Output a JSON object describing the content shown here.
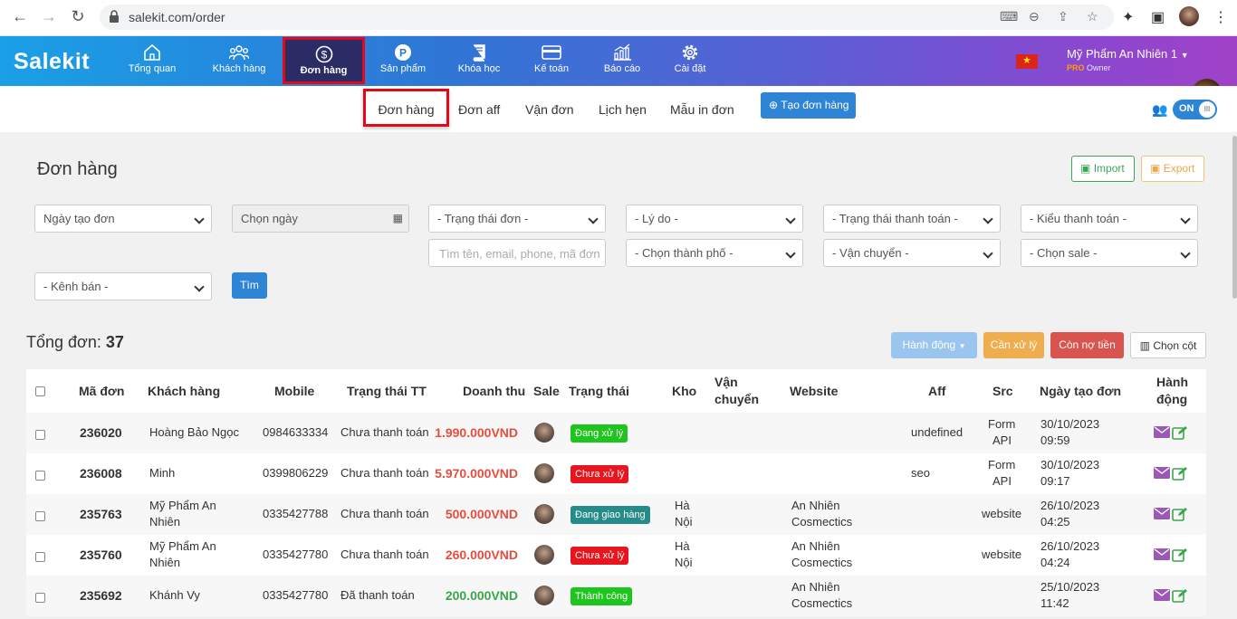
{
  "browser": {
    "url": "salekit.com/order"
  },
  "header": {
    "logo": "Salekit",
    "menu": [
      {
        "label": "Tổng quan",
        "icon": "home-icon"
      },
      {
        "label": "Khách hàng",
        "icon": "users-icon"
      },
      {
        "label": "Đơn hàng",
        "icon": "dollar-circle-icon"
      },
      {
        "label": "Sản phẩm",
        "icon": "p-circle-icon"
      },
      {
        "label": "Khóa học",
        "icon": "book-icon"
      },
      {
        "label": "Kế toán",
        "icon": "credit-card-icon"
      },
      {
        "label": "Báo cáo",
        "icon": "chart-icon"
      },
      {
        "label": "Cài đặt",
        "icon": "gear-icon"
      }
    ],
    "shop_name": "Mỹ Phẩm An Nhiên 1",
    "plan": "PRO",
    "role": "Owner"
  },
  "subnav": {
    "tabs": [
      "Đơn hàng",
      "Đơn aff",
      "Vận đơn",
      "Lịch hẹn",
      "Mẫu in đơn"
    ],
    "create_label": "Tạo đơn hàng",
    "toggle_label": "ON"
  },
  "panel": {
    "title": "Đơn hàng",
    "import_label": "Import",
    "export_label": "Export",
    "filters": {
      "date_type": "Ngày tạo đơn",
      "date_pick": "Chọn ngày",
      "order_status": "- Trạng thái đơn -",
      "reason": "- Lý do -",
      "payment_status": "- Trạng thái thanh toán -",
      "payment_type": "- Kiểu thanh toán -",
      "search_placeholder": "Tìm tên, email, phone, mã đơn",
      "city": "- Chọn thành phố -",
      "shipping": "- Vận chuyển -",
      "sale": "- Chọn sale -",
      "channel": "- Kênh bán -",
      "search_button": "Tìm"
    }
  },
  "summary": {
    "total_label": "Tổng đơn:",
    "total_count": "37",
    "action_label": "Hành động",
    "pending_label": "Cần xử lý",
    "debt_label": "Còn nợ tiền",
    "columns_label": "Chọn cột"
  },
  "table": {
    "headers": {
      "code": "Mã đơn",
      "customer": "Khách hàng",
      "mobile": "Mobile",
      "pay_status": "Trạng thái TT",
      "revenue": "Doanh thu",
      "sale": "Sale",
      "status": "Trạng thái",
      "warehouse": "Kho",
      "shipping_1": "Vận",
      "shipping_2": "chuyển",
      "website": "Website",
      "aff": "Aff",
      "src": "Src",
      "created": "Ngày tạo đơn",
      "action_1": "Hành",
      "action_2": "động"
    },
    "rows": [
      {
        "code": "236020",
        "customer_1": "Hoàng Bảo Ngọc",
        "customer_2": "",
        "mobile": "0984633334",
        "pay_status": "Chưa thanh toán",
        "revenue": "1.990.000VND",
        "status": "Đang xử lý",
        "status_color": "#1ec51e",
        "warehouse_1": "",
        "warehouse_2": "",
        "website_1": "",
        "website_2": "",
        "aff": "undefined",
        "src_1": "Form",
        "src_2": "API",
        "date": "30/10/2023",
        "time": "09:59"
      },
      {
        "code": "236008",
        "customer_1": "Minh",
        "customer_2": "",
        "mobile": "0399806229",
        "pay_status": "Chưa thanh toán",
        "revenue": "5.970.000VND",
        "status": "Chưa xử lý",
        "status_color": "#e8141e",
        "warehouse_1": "",
        "warehouse_2": "",
        "website_1": "",
        "website_2": "",
        "aff": "seo",
        "src_1": "Form",
        "src_2": "API",
        "date": "30/10/2023",
        "time": "09:17"
      },
      {
        "code": "235763",
        "customer_1": "Mỹ Phẩm An",
        "customer_2": "Nhiên",
        "mobile": "0335427788",
        "pay_status": "Chưa thanh toán",
        "revenue": "500.000VND",
        "status": "Đang giao hàng",
        "status_color": "#258c8a",
        "warehouse_1": "Hà",
        "warehouse_2": "Nội",
        "website_1": "An Nhiên",
        "website_2": "Cosmectics",
        "aff": "",
        "src_1": "website",
        "src_2": "",
        "date": "26/10/2023",
        "time": "04:25"
      },
      {
        "code": "235760",
        "customer_1": "Mỹ Phẩm An",
        "customer_2": "Nhiên",
        "mobile": "0335427780",
        "pay_status": "Chưa thanh toán",
        "revenue": "260.000VND",
        "status": "Chưa xử lý",
        "status_color": "#e8141e",
        "warehouse_1": "Hà",
        "warehouse_2": "Nội",
        "website_1": "An Nhiên",
        "website_2": "Cosmectics",
        "aff": "",
        "src_1": "website",
        "src_2": "",
        "date": "26/10/2023",
        "time": "04:24"
      },
      {
        "code": "235692",
        "customer_1": "Khánh Vy",
        "customer_2": "",
        "mobile": "0335427780",
        "pay_status": "Đã thanh toán",
        "revenue": "200.000VND",
        "status": "Thành công",
        "status_color": "#1ec51e",
        "warehouse_1": "",
        "warehouse_2": "",
        "website_1": "An Nhiên",
        "website_2": "Cosmectics",
        "aff": "",
        "src_1": "",
        "src_2": "",
        "date": "25/10/2023",
        "time": "11:42"
      }
    ]
  },
  "colors": {
    "primary": "#2e84d5",
    "highlight_border": "#e3091a",
    "revenue_unpaid": "#e74c3c",
    "revenue_paid": "#3aa64a"
  }
}
